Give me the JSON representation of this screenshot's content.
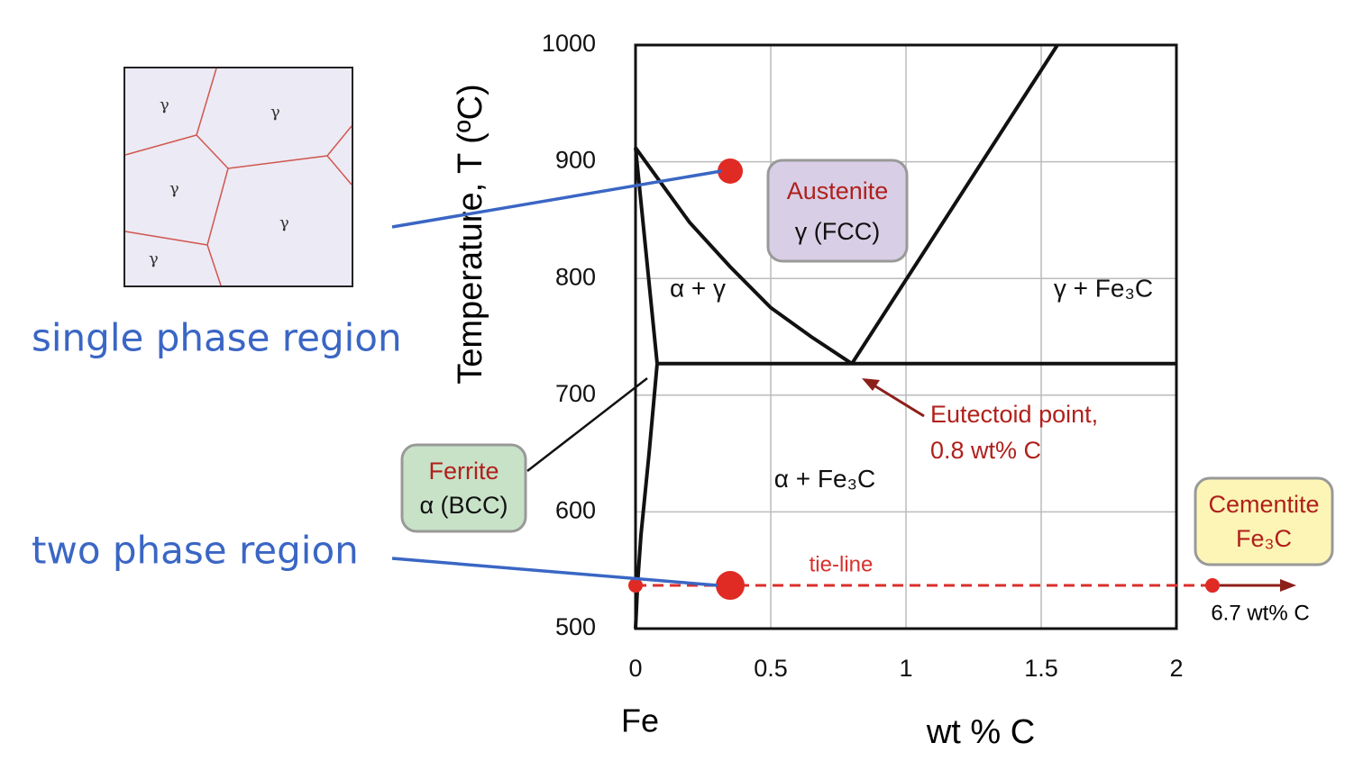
{
  "chart_data": {
    "type": "phase-diagram",
    "xlabel": "wt % C",
    "ylabel": "Temperature, T  (ºC)",
    "origin_label": "Fe",
    "xlim": [
      0,
      2
    ],
    "ylim": [
      500,
      1000
    ],
    "xticks": [
      0,
      0.5,
      1,
      1.5,
      2
    ],
    "yticks": [
      500,
      600,
      700,
      800,
      900,
      1000
    ],
    "grid": true,
    "boundaries": [
      {
        "x": [
          0,
          0.1,
          0.2,
          0.35,
          0.5,
          0.65,
          0.8
        ],
        "y": [
          912,
          880,
          848,
          810,
          775,
          750,
          727
        ]
      },
      {
        "x": [
          0.8,
          1.56
        ],
        "y": [
          727,
          1000
        ]
      },
      {
        "x": [
          0.08,
          2
        ],
        "y": [
          727,
          727
        ]
      },
      {
        "x": [
          0,
          0.08
        ],
        "y": [
          912,
          727
        ]
      },
      {
        "x": [
          0.08,
          0.05,
          0.02,
          0.008,
          0
        ],
        "y": [
          727,
          650,
          580,
          540,
          500
        ]
      }
    ],
    "regions": [
      {
        "label": "α + γ",
        "x": 0.23,
        "y": 790
      },
      {
        "label": "γ + Fe₃C",
        "x": 1.73,
        "y": 790
      },
      {
        "label": "α + Fe₃C",
        "x": 0.7,
        "y": 627
      }
    ],
    "points": [
      {
        "x": 0.35,
        "y": 892
      },
      {
        "x": 0.35,
        "y": 537
      },
      {
        "x": 0,
        "y": 537
      }
    ],
    "tie_line": {
      "y": 537,
      "label": "tie-line",
      "end_label": "6.7 wt% C"
    },
    "eutectoid": {
      "lines": [
        "Eutectoid point,",
        "0.8 wt% C"
      ]
    },
    "austenite": [
      "Austenite",
      "γ  (FCC)"
    ],
    "ferrite": [
      "Ferrite",
      "α (BCC)"
    ],
    "cementite": [
      "Cementite",
      "Fe₃C"
    ]
  },
  "microstructure": {
    "grains": [
      "γ",
      "γ",
      "γ",
      "γ",
      "γ"
    ]
  },
  "annotations": {
    "single": "single phase region",
    "two": "two phase region"
  }
}
